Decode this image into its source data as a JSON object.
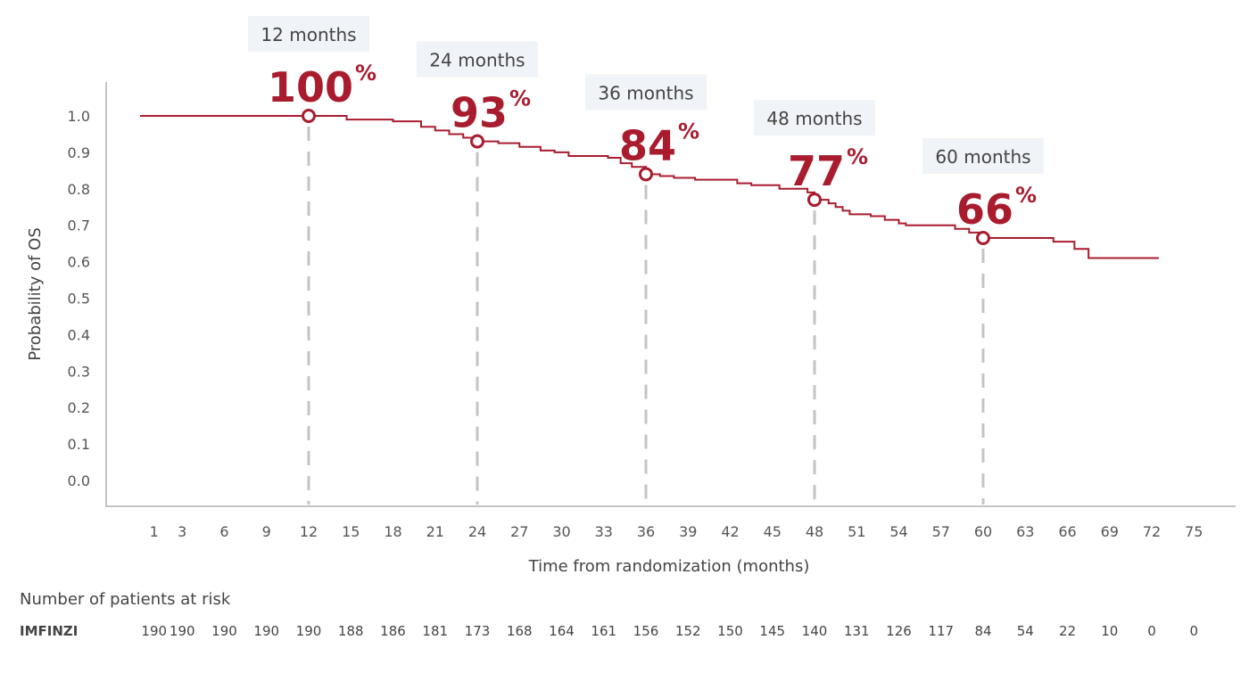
{
  "chart_data": {
    "type": "line",
    "subtype": "kaplan-meier step",
    "xlabel": "Time from randomization (months)",
    "ylabel": "Probability of OS",
    "xticks": [
      1,
      3,
      6,
      9,
      12,
      15,
      18,
      21,
      24,
      27,
      30,
      33,
      36,
      39,
      42,
      45,
      48,
      51,
      54,
      57,
      60,
      63,
      66,
      69,
      72,
      75
    ],
    "yticks": [
      "0.0",
      "0.1",
      "0.2",
      "0.3",
      "0.4",
      "0.5",
      "0.6",
      "0.7",
      "0.8",
      "0.9",
      "1.0"
    ],
    "xlim": [
      0,
      75
    ],
    "ylim": [
      0,
      1.0
    ],
    "grid": false,
    "color": "#a81c2e",
    "series": [
      {
        "points": [
          [
            0,
            1.0
          ],
          [
            14.7,
            0.99
          ],
          [
            18,
            0.985
          ],
          [
            20,
            0.97
          ],
          [
            21,
            0.96
          ],
          [
            22,
            0.95
          ],
          [
            23,
            0.94
          ],
          [
            24,
            0.93
          ],
          [
            25.5,
            0.925
          ],
          [
            27,
            0.915
          ],
          [
            28.5,
            0.905
          ],
          [
            29.5,
            0.9
          ],
          [
            30.5,
            0.89
          ],
          [
            33.3,
            0.885
          ],
          [
            34.2,
            0.87
          ],
          [
            35,
            0.86
          ],
          [
            36,
            0.84
          ],
          [
            37,
            0.835
          ],
          [
            38,
            0.83
          ],
          [
            39.5,
            0.825
          ],
          [
            42.5,
            0.815
          ],
          [
            43.5,
            0.81
          ],
          [
            45.5,
            0.8
          ],
          [
            47.5,
            0.79
          ],
          [
            48,
            0.77
          ],
          [
            49,
            0.76
          ],
          [
            49.5,
            0.75
          ],
          [
            50,
            0.74
          ],
          [
            50.5,
            0.73
          ],
          [
            52,
            0.725
          ],
          [
            53,
            0.715
          ],
          [
            54,
            0.705
          ],
          [
            54.5,
            0.7
          ],
          [
            58,
            0.69
          ],
          [
            59,
            0.68
          ],
          [
            60,
            0.665
          ],
          [
            65,
            0.655
          ],
          [
            66.5,
            0.635
          ],
          [
            67.5,
            0.61
          ],
          [
            72.5,
            0.61
          ]
        ]
      }
    ],
    "annotations": [
      {
        "month": 12,
        "value": 1.0,
        "label": "12 months",
        "pct": "100",
        "sign": "%"
      },
      {
        "month": 24,
        "value": 0.93,
        "label": "24 months",
        "pct": "93",
        "sign": "%"
      },
      {
        "month": 36,
        "value": 0.84,
        "label": "36 months",
        "pct": "84",
        "sign": "%"
      },
      {
        "month": 48,
        "value": 0.77,
        "label": "48 months",
        "pct": "77",
        "sign": "%"
      },
      {
        "month": 60,
        "value": 0.665,
        "label": "60 months",
        "pct": "66",
        "sign": "%"
      }
    ],
    "risk_table": {
      "title": "Number of patients at risk",
      "rows": [
        {
          "name": "IMFINZI",
          "values": [
            190,
            190,
            190,
            190,
            190,
            188,
            186,
            181,
            173,
            168,
            164,
            161,
            156,
            152,
            150,
            145,
            140,
            131,
            126,
            117,
            84,
            54,
            22,
            10,
            0,
            0
          ]
        }
      ]
    }
  }
}
